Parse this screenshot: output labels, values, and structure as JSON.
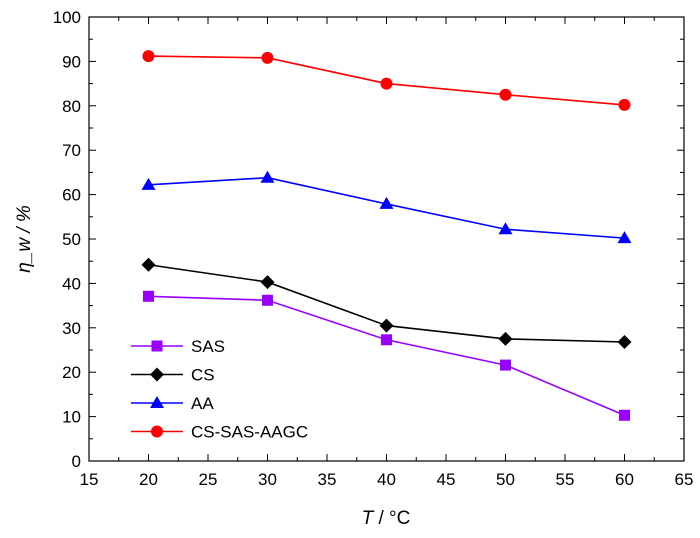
{
  "chart_data": {
    "type": "line",
    "title": "",
    "xlabel": "T / °C",
    "xlabel_var": "T",
    "xlabel_unit": " / °C",
    "ylabel": "η_w / %",
    "ylabel_var": "η",
    "ylabel_sub": "w",
    "ylabel_unit": " / %",
    "xlim": [
      15,
      65
    ],
    "ylim": [
      0,
      100
    ],
    "xticks": [
      15,
      20,
      25,
      30,
      35,
      40,
      45,
      50,
      55,
      60,
      65
    ],
    "yticks": [
      0,
      10,
      20,
      30,
      40,
      50,
      60,
      70,
      80,
      90,
      100
    ],
    "grid": false,
    "legend_position": "bottom-left",
    "x": [
      20,
      30,
      40,
      50,
      60
    ],
    "series": [
      {
        "name": "SAS",
        "color": "#9900ff",
        "marker": "square",
        "values": [
          37.1,
          36.2,
          27.3,
          21.6,
          10.3
        ]
      },
      {
        "name": "CS",
        "color": "#000000",
        "marker": "diamond",
        "values": [
          44.2,
          40.3,
          30.5,
          27.5,
          26.8
        ]
      },
      {
        "name": "AA",
        "color": "#0000ff",
        "marker": "triangle",
        "values": [
          62.2,
          63.8,
          57.9,
          52.2,
          50.2
        ]
      },
      {
        "name": "CS-SAS-AAGC",
        "color": "#ff0000",
        "marker": "circle",
        "values": [
          91.2,
          90.8,
          85.0,
          82.5,
          80.2
        ]
      }
    ]
  }
}
